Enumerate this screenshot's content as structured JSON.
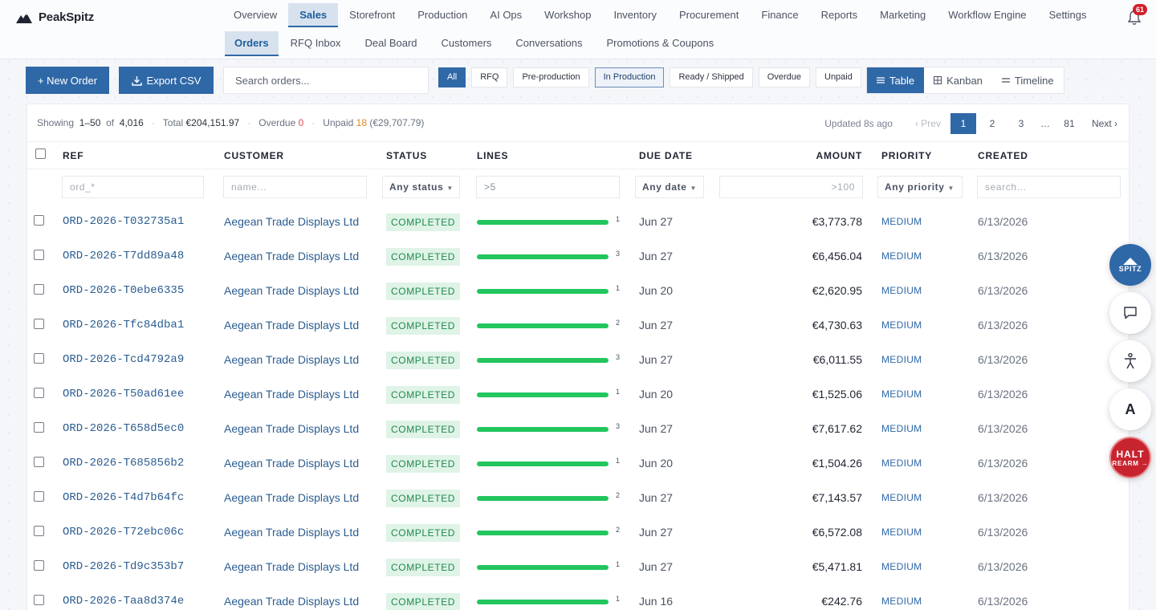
{
  "brand": {
    "name": "PeakSpitz",
    "logo_icon": "mountain-icon"
  },
  "nav_primary": [
    {
      "label": "Overview",
      "active": false
    },
    {
      "label": "Sales",
      "active": true
    },
    {
      "label": "Storefront",
      "active": false
    },
    {
      "label": "Production",
      "active": false
    },
    {
      "label": "AI Ops",
      "active": false
    },
    {
      "label": "Workshop",
      "active": false
    },
    {
      "label": "Inventory",
      "active": false
    },
    {
      "label": "Procurement",
      "active": false
    },
    {
      "label": "Finance",
      "active": false
    },
    {
      "label": "Reports",
      "active": false
    },
    {
      "label": "Marketing",
      "active": false
    },
    {
      "label": "Workflow Engine",
      "active": false
    },
    {
      "label": "Settings",
      "active": false
    }
  ],
  "nav_secondary": [
    {
      "label": "Orders",
      "active": true
    },
    {
      "label": "RFQ Inbox",
      "active": false
    },
    {
      "label": "Deal Board",
      "active": false
    },
    {
      "label": "Customers",
      "active": false
    },
    {
      "label": "Conversations",
      "active": false
    },
    {
      "label": "Promotions & Coupons",
      "active": false
    }
  ],
  "notifications": {
    "count": "61",
    "icon": "bell-icon"
  },
  "toolbar": {
    "new_order_label": "+ New Order",
    "export_label": "Export CSV",
    "search_placeholder": "Search orders...",
    "filter_chips": [
      {
        "label": "All",
        "state": "active"
      },
      {
        "label": "RFQ",
        "state": "default"
      },
      {
        "label": "Pre-production",
        "state": "default"
      },
      {
        "label": "In Production",
        "state": "outlined"
      },
      {
        "label": "Ready / Shipped",
        "state": "default"
      },
      {
        "label": "Overdue",
        "state": "default"
      },
      {
        "label": "Unpaid",
        "state": "default"
      }
    ],
    "views": [
      {
        "label": "Table",
        "icon": "list-icon",
        "active": true
      },
      {
        "label": "Kanban",
        "icon": "grid-icon",
        "active": false
      },
      {
        "label": "Timeline",
        "icon": "timeline-icon",
        "active": false
      }
    ]
  },
  "summary": {
    "showing_label": "Showing",
    "range": "1–50",
    "of_label": "of",
    "total_count": "4,016",
    "total_label": "Total",
    "total_value": "€204,151.97",
    "overdue_label": "Overdue",
    "overdue_value": "0",
    "unpaid_label": "Unpaid",
    "unpaid_count": "18",
    "unpaid_value": "(€29,707.79)"
  },
  "pager": {
    "updated": "Updated 8s ago",
    "prev": "‹ Prev",
    "pages": [
      "1",
      "2",
      "3",
      "…",
      "81"
    ],
    "active_page": "1",
    "next": "Next ›"
  },
  "table": {
    "headers": {
      "ref": "REF",
      "customer": "CUSTOMER",
      "status": "STATUS",
      "lines": "LINES",
      "due": "DUE DATE",
      "amount": "AMOUNT",
      "priority": "PRIORITY",
      "created": "CREATED"
    },
    "filters": {
      "ref": "ord_*",
      "customer": "name...",
      "status": "Any status",
      "lines": ">5",
      "due": "Any date",
      "amount": ">100",
      "priority": "Any priority",
      "created": "search..."
    },
    "rows": [
      {
        "ref": "ORD-2026-T032735a1",
        "customer": "Aegean Trade Displays Ltd",
        "status": "COMPLETED",
        "lines": "1",
        "lines_progress": 1.0,
        "due": "Jun 27",
        "amount": "€3,773.78",
        "priority": "MEDIUM",
        "created": "6/13/2026"
      },
      {
        "ref": "ORD-2026-T7dd89a48",
        "customer": "Aegean Trade Displays Ltd",
        "status": "COMPLETED",
        "lines": "3",
        "lines_progress": 1.0,
        "due": "Jun 27",
        "amount": "€6,456.04",
        "priority": "MEDIUM",
        "created": "6/13/2026"
      },
      {
        "ref": "ORD-2026-T0ebe6335",
        "customer": "Aegean Trade Displays Ltd",
        "status": "COMPLETED",
        "lines": "1",
        "lines_progress": 1.0,
        "due": "Jun 20",
        "amount": "€2,620.95",
        "priority": "MEDIUM",
        "created": "6/13/2026"
      },
      {
        "ref": "ORD-2026-Tfc84dba1",
        "customer": "Aegean Trade Displays Ltd",
        "status": "COMPLETED",
        "lines": "2",
        "lines_progress": 1.0,
        "due": "Jun 27",
        "amount": "€4,730.63",
        "priority": "MEDIUM",
        "created": "6/13/2026"
      },
      {
        "ref": "ORD-2026-Tcd4792a9",
        "customer": "Aegean Trade Displays Ltd",
        "status": "COMPLETED",
        "lines": "3",
        "lines_progress": 1.0,
        "due": "Jun 27",
        "amount": "€6,011.55",
        "priority": "MEDIUM",
        "created": "6/13/2026"
      },
      {
        "ref": "ORD-2026-T50ad61ee",
        "customer": "Aegean Trade Displays Ltd",
        "status": "COMPLETED",
        "lines": "1",
        "lines_progress": 1.0,
        "due": "Jun 20",
        "amount": "€1,525.06",
        "priority": "MEDIUM",
        "created": "6/13/2026"
      },
      {
        "ref": "ORD-2026-T658d5ec0",
        "customer": "Aegean Trade Displays Ltd",
        "status": "COMPLETED",
        "lines": "3",
        "lines_progress": 1.0,
        "due": "Jun 27",
        "amount": "€7,617.62",
        "priority": "MEDIUM",
        "created": "6/13/2026"
      },
      {
        "ref": "ORD-2026-T685856b2",
        "customer": "Aegean Trade Displays Ltd",
        "status": "COMPLETED",
        "lines": "1",
        "lines_progress": 1.0,
        "due": "Jun 20",
        "amount": "€1,504.26",
        "priority": "MEDIUM",
        "created": "6/13/2026"
      },
      {
        "ref": "ORD-2026-T4d7b64fc",
        "customer": "Aegean Trade Displays Ltd",
        "status": "COMPLETED",
        "lines": "2",
        "lines_progress": 1.0,
        "due": "Jun 27",
        "amount": "€7,143.57",
        "priority": "MEDIUM",
        "created": "6/13/2026"
      },
      {
        "ref": "ORD-2026-T72ebc06c",
        "customer": "Aegean Trade Displays Ltd",
        "status": "COMPLETED",
        "lines": "2",
        "lines_progress": 1.0,
        "due": "Jun 27",
        "amount": "€6,572.08",
        "priority": "MEDIUM",
        "created": "6/13/2026"
      },
      {
        "ref": "ORD-2026-Td9c353b7",
        "customer": "Aegean Trade Displays Ltd",
        "status": "COMPLETED",
        "lines": "1",
        "lines_progress": 1.0,
        "due": "Jun 27",
        "amount": "€5,471.81",
        "priority": "MEDIUM",
        "created": "6/13/2026"
      },
      {
        "ref": "ORD-2026-Taa8d374e",
        "customer": "Aegean Trade Displays Ltd",
        "status": "COMPLETED",
        "lines": "1",
        "lines_progress": 1.0,
        "due": "Jun 16",
        "amount": "€242.76",
        "priority": "MEDIUM",
        "created": "6/13/2026"
      }
    ]
  },
  "floating": {
    "spitz_label": "SPITZ",
    "chat_icon": "chat-icon",
    "accessibility_icon": "accessibility-icon",
    "font_label": "A",
    "halt_label": "HALT",
    "halt_sub": "REARM →"
  },
  "colors": {
    "accent": "#2f68a7",
    "progress": "#22c55e",
    "status_bg": "#dff3e7",
    "danger": "#c8242f"
  }
}
